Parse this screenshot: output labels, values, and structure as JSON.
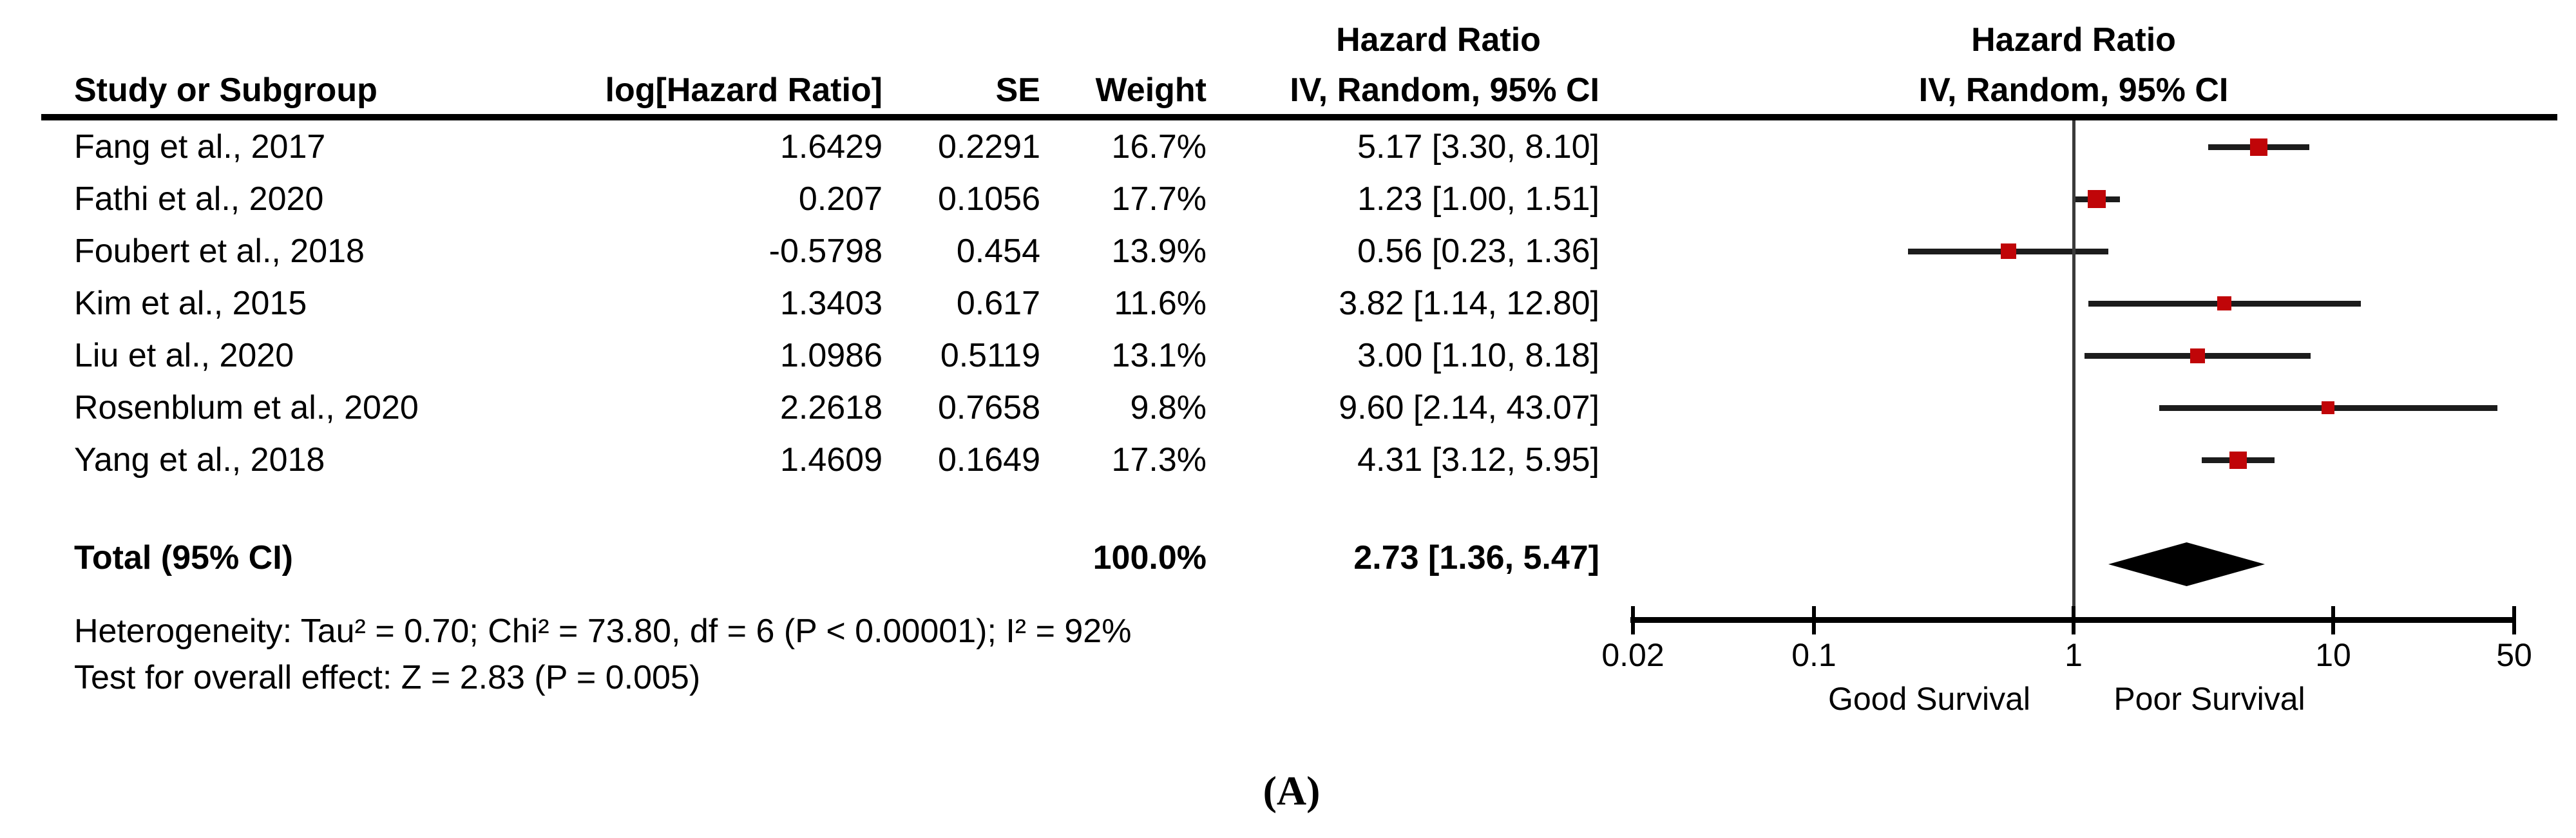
{
  "figure_label": "(A)",
  "table": {
    "headers": {
      "study": "Study or Subgroup",
      "log_hr": "log[Hazard Ratio]",
      "se": "SE",
      "weight": "Weight"
    },
    "ci_header": {
      "line1": "Hazard Ratio",
      "line2": "IV, Random, 95% CI"
    },
    "total": {
      "label": "Total (95% CI)",
      "weight": "100.0%",
      "ci": "2.73 [1.36, 5.47]"
    },
    "heterogeneity": "Heterogeneity: Tau² = 0.70; Chi² = 73.80, df = 6 (P < 0.00001); I² = 92%",
    "overall_effect": "Test for overall effect: Z = 2.83 (P = 0.005)"
  },
  "plot": {
    "header": {
      "line1": "Hazard Ratio",
      "line2": "IV, Random, 95% CI"
    }
  },
  "chart_data": {
    "type": "forest",
    "x_scale": "log",
    "xlim": [
      0.02,
      50
    ],
    "axis_ticks": [
      0.02,
      0.1,
      1,
      10,
      50
    ],
    "axis_tick_labels": [
      "0.02",
      "0.1",
      "1",
      "10",
      "50"
    ],
    "null_line": 1,
    "left_label": "Good Survival",
    "right_label": "Poor Survival",
    "marker_color": "#c00508",
    "studies": [
      {
        "name": "Fang et al., 2017",
        "log_hr": "1.6429",
        "se": "0.2291",
        "weight": "16.7%",
        "weight_pct": 16.7,
        "ci_text": "5.17 [3.30, 8.10]",
        "hr": 5.17,
        "lo": 3.3,
        "hi": 8.1
      },
      {
        "name": "Fathi et al., 2020",
        "log_hr": "0.207",
        "se": "0.1056",
        "weight": "17.7%",
        "weight_pct": 17.7,
        "ci_text": "1.23 [1.00, 1.51]",
        "hr": 1.23,
        "lo": 1.0,
        "hi": 1.51
      },
      {
        "name": "Foubert et al., 2018",
        "log_hr": "-0.5798",
        "se": "0.454",
        "weight": "13.9%",
        "weight_pct": 13.9,
        "ci_text": "0.56 [0.23, 1.36]",
        "hr": 0.56,
        "lo": 0.23,
        "hi": 1.36
      },
      {
        "name": "Kim et al., 2015",
        "log_hr": "1.3403",
        "se": "0.617",
        "weight": "11.6%",
        "weight_pct": 11.6,
        "ci_text": "3.82 [1.14, 12.80]",
        "hr": 3.82,
        "lo": 1.14,
        "hi": 12.8
      },
      {
        "name": "Liu et al., 2020",
        "log_hr": "1.0986",
        "se": "0.5119",
        "weight": "13.1%",
        "weight_pct": 13.1,
        "ci_text": "3.00 [1.10, 8.18]",
        "hr": 3.0,
        "lo": 1.1,
        "hi": 8.18
      },
      {
        "name": "Rosenblum et al., 2020",
        "log_hr": "2.2618",
        "se": "0.7658",
        "weight": "9.8%",
        "weight_pct": 9.8,
        "ci_text": "9.60 [2.14, 43.07]",
        "hr": 9.6,
        "lo": 2.14,
        "hi": 43.07
      },
      {
        "name": "Yang et al., 2018",
        "log_hr": "1.4609",
        "se": "0.1649",
        "weight": "17.3%",
        "weight_pct": 17.3,
        "ci_text": "4.31 [3.12, 5.95]",
        "hr": 4.31,
        "lo": 3.12,
        "hi": 5.95
      }
    ],
    "total": {
      "hr": 2.73,
      "lo": 1.36,
      "hi": 5.47
    }
  }
}
